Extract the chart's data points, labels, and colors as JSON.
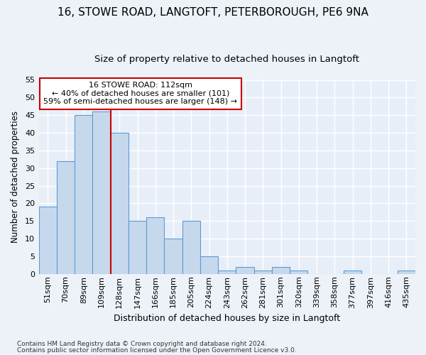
{
  "title1": "16, STOWE ROAD, LANGTOFT, PETERBOROUGH, PE6 9NA",
  "title2": "Size of property relative to detached houses in Langtoft",
  "xlabel": "Distribution of detached houses by size in Langtoft",
  "ylabel": "Number of detached properties",
  "footnote1": "Contains HM Land Registry data © Crown copyright and database right 2024.",
  "footnote2": "Contains public sector information licensed under the Open Government Licence v3.0.",
  "annotation_line1": "16 STOWE ROAD: 112sqm",
  "annotation_line2": "← 40% of detached houses are smaller (101)",
  "annotation_line3": "59% of semi-detached houses are larger (148) →",
  "bar_labels": [
    "51sqm",
    "70sqm",
    "89sqm",
    "109sqm",
    "128sqm",
    "147sqm",
    "166sqm",
    "185sqm",
    "205sqm",
    "224sqm",
    "243sqm",
    "262sqm",
    "281sqm",
    "301sqm",
    "320sqm",
    "339sqm",
    "358sqm",
    "377sqm",
    "397sqm",
    "416sqm",
    "435sqm"
  ],
  "bar_values": [
    19,
    32,
    45,
    46,
    40,
    15,
    16,
    10,
    15,
    5,
    1,
    2,
    1,
    2,
    1,
    0,
    0,
    1,
    0,
    0,
    1
  ],
  "bar_color": "#c6d9ec",
  "bar_edge_color": "#5b9bd5",
  "vline_x_index": 3,
  "vline_color": "#cc0000",
  "ylim": [
    0,
    55
  ],
  "yticks": [
    0,
    5,
    10,
    15,
    20,
    25,
    30,
    35,
    40,
    45,
    50,
    55
  ],
  "annotation_box_color": "#cc0000",
  "bg_color": "#edf2f9",
  "plot_bg_color": "#e8eef8",
  "grid_color": "#ffffff",
  "title1_fontsize": 11,
  "title2_fontsize": 9.5,
  "ylabel_fontsize": 8.5,
  "xlabel_fontsize": 9,
  "ytick_fontsize": 8,
  "xtick_fontsize": 8,
  "footnote_fontsize": 6.5
}
